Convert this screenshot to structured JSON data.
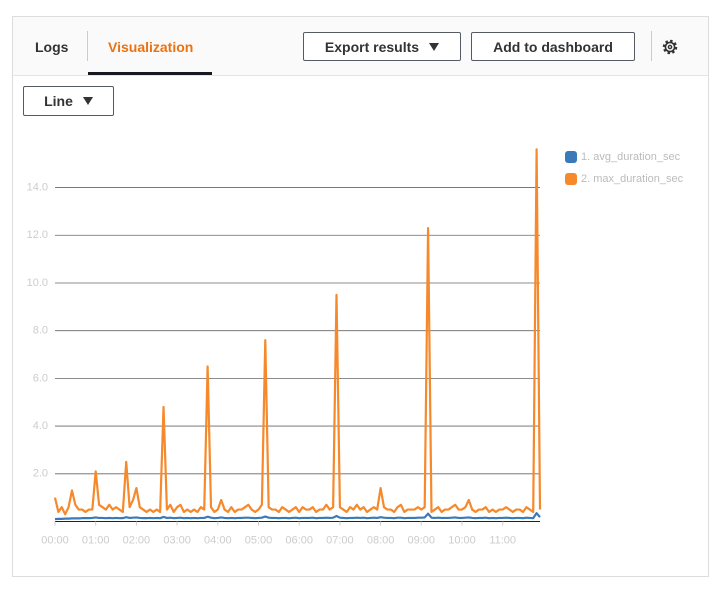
{
  "tabs": [
    "Logs",
    "Visualization"
  ],
  "buttons": {
    "export": "Export results",
    "add": "Add to dashboard"
  },
  "chart_type_selector": "Line",
  "chart_data": {
    "type": "line",
    "x": [
      "00:00",
      "00:05",
      "00:10",
      "00:15",
      "00:20",
      "00:25",
      "00:30",
      "00:35",
      "00:40",
      "00:45",
      "00:50",
      "00:55",
      "01:00",
      "01:05",
      "01:10",
      "01:15",
      "01:20",
      "01:25",
      "01:30",
      "01:35",
      "01:40",
      "01:45",
      "01:50",
      "01:55",
      "02:00",
      "02:05",
      "02:10",
      "02:15",
      "02:20",
      "02:25",
      "02:30",
      "02:35",
      "02:40",
      "02:45",
      "02:50",
      "02:55",
      "03:00",
      "03:05",
      "03:10",
      "03:15",
      "03:20",
      "03:25",
      "03:30",
      "03:35",
      "03:40",
      "03:45",
      "03:50",
      "03:55",
      "04:00",
      "04:05",
      "04:10",
      "04:15",
      "04:20",
      "04:25",
      "04:30",
      "04:35",
      "04:40",
      "04:45",
      "04:50",
      "04:55",
      "05:00",
      "05:05",
      "05:10",
      "05:15",
      "05:20",
      "05:25",
      "05:30",
      "05:35",
      "05:40",
      "05:45",
      "05:50",
      "05:55",
      "06:00",
      "06:05",
      "06:10",
      "06:15",
      "06:20",
      "06:25",
      "06:30",
      "06:35",
      "06:40",
      "06:45",
      "06:50",
      "06:55",
      "07:00",
      "07:05",
      "07:10",
      "07:15",
      "07:20",
      "07:25",
      "07:30",
      "07:35",
      "07:40",
      "07:45",
      "07:50",
      "07:55",
      "08:00",
      "08:05",
      "08:10",
      "08:15",
      "08:20",
      "08:25",
      "08:30",
      "08:35",
      "08:40",
      "08:45",
      "08:50",
      "08:55",
      "09:00",
      "09:05",
      "09:10",
      "09:15",
      "09:20",
      "09:25",
      "09:30",
      "09:35",
      "09:40",
      "09:45",
      "09:50",
      "09:55",
      "10:00",
      "10:05",
      "10:10",
      "10:15",
      "10:20",
      "10:25",
      "10:30",
      "10:35",
      "10:40",
      "10:45",
      "10:50",
      "10:55",
      "11:00",
      "11:05",
      "11:10",
      "11:15",
      "11:20",
      "11:25",
      "11:30",
      "11:35",
      "11:40",
      "11:45",
      "11:50",
      "11:55"
    ],
    "series": [
      {
        "name": "1. avg_duration_sec",
        "color": "#3a7ab8",
        "values": [
          0.1,
          0.11,
          0.11,
          0.12,
          0.12,
          0.13,
          0.13,
          0.13,
          0.14,
          0.14,
          0.14,
          0.15,
          0.17,
          0.15,
          0.15,
          0.14,
          0.15,
          0.14,
          0.15,
          0.14,
          0.14,
          0.18,
          0.15,
          0.16,
          0.17,
          0.15,
          0.14,
          0.14,
          0.15,
          0.14,
          0.15,
          0.14,
          0.19,
          0.15,
          0.16,
          0.14,
          0.15,
          0.16,
          0.14,
          0.15,
          0.14,
          0.15,
          0.14,
          0.15,
          0.15,
          0.2,
          0.16,
          0.14,
          0.15,
          0.17,
          0.15,
          0.14,
          0.15,
          0.14,
          0.15,
          0.15,
          0.16,
          0.16,
          0.15,
          0.14,
          0.15,
          0.16,
          0.21,
          0.16,
          0.15,
          0.15,
          0.14,
          0.15,
          0.15,
          0.14,
          0.15,
          0.16,
          0.14,
          0.15,
          0.15,
          0.15,
          0.16,
          0.14,
          0.15,
          0.15,
          0.16,
          0.15,
          0.16,
          0.23,
          0.16,
          0.15,
          0.14,
          0.15,
          0.15,
          0.16,
          0.15,
          0.16,
          0.14,
          0.15,
          0.16,
          0.15,
          0.18,
          0.16,
          0.15,
          0.15,
          0.14,
          0.16,
          0.16,
          0.14,
          0.15,
          0.15,
          0.15,
          0.16,
          0.16,
          0.17,
          0.33,
          0.16,
          0.15,
          0.16,
          0.15,
          0.15,
          0.15,
          0.16,
          0.17,
          0.15,
          0.15,
          0.16,
          0.17,
          0.15,
          0.14,
          0.15,
          0.15,
          0.16,
          0.14,
          0.15,
          0.14,
          0.15,
          0.15,
          0.16,
          0.15,
          0.14,
          0.15,
          0.15,
          0.14,
          0.16,
          0.15,
          0.14,
          0.35,
          0.18
        ]
      },
      {
        "name": "2. max_duration_sec",
        "color": "#f5892c",
        "values": [
          1.0,
          0.4,
          0.6,
          0.3,
          0.6,
          1.3,
          0.7,
          0.5,
          0.5,
          0.4,
          0.5,
          0.5,
          2.1,
          0.7,
          0.6,
          0.5,
          0.7,
          0.5,
          0.6,
          0.5,
          0.4,
          2.5,
          0.6,
          0.9,
          1.4,
          0.6,
          0.5,
          0.4,
          0.5,
          0.4,
          0.5,
          0.4,
          4.8,
          0.5,
          0.7,
          0.4,
          0.6,
          0.7,
          0.4,
          0.5,
          0.4,
          0.5,
          0.4,
          0.6,
          0.5,
          6.5,
          0.6,
          0.4,
          0.5,
          0.9,
          0.5,
          0.4,
          0.6,
          0.4,
          0.5,
          0.5,
          0.6,
          0.7,
          0.5,
          0.4,
          0.5,
          0.7,
          7.6,
          0.6,
          0.5,
          0.5,
          0.4,
          0.6,
          0.5,
          0.4,
          0.5,
          0.6,
          0.4,
          0.6,
          0.5,
          0.5,
          0.6,
          0.4,
          0.5,
          0.5,
          0.7,
          0.5,
          0.6,
          9.5,
          0.6,
          0.5,
          0.4,
          0.6,
          0.5,
          0.7,
          0.5,
          0.6,
          0.4,
          0.5,
          0.6,
          0.5,
          1.4,
          0.6,
          0.5,
          0.5,
          0.4,
          0.6,
          0.7,
          0.4,
          0.5,
          0.5,
          0.5,
          0.6,
          0.5,
          0.6,
          12.3,
          0.4,
          0.5,
          0.6,
          0.4,
          0.5,
          0.5,
          0.6,
          0.7,
          0.5,
          0.5,
          0.6,
          0.9,
          0.5,
          0.4,
          0.5,
          0.5,
          0.6,
          0.4,
          0.5,
          0.4,
          0.5,
          0.5,
          0.6,
          0.5,
          0.4,
          0.5,
          0.5,
          0.4,
          0.6,
          0.5,
          0.4,
          15.6,
          0.5
        ]
      }
    ],
    "xlim": [
      "00:00",
      "11:55"
    ],
    "xticks": [
      "00:00",
      "01:00",
      "02:00",
      "03:00",
      "04:00",
      "05:00",
      "06:00",
      "07:00",
      "08:00",
      "09:00",
      "10:00",
      "11:00"
    ],
    "ylim": [
      0,
      15.7
    ],
    "yticks": [
      {
        "value": 2,
        "label": "2.0"
      },
      {
        "value": 4,
        "label": "4.0"
      },
      {
        "value": 6,
        "label": "6.0"
      },
      {
        "value": 8,
        "label": "8.0"
      },
      {
        "value": 10,
        "label": "10.0"
      },
      {
        "value": 12,
        "label": "12.0"
      },
      {
        "value": 14,
        "label": "14.0"
      }
    ],
    "grid": true,
    "legend": "right"
  }
}
